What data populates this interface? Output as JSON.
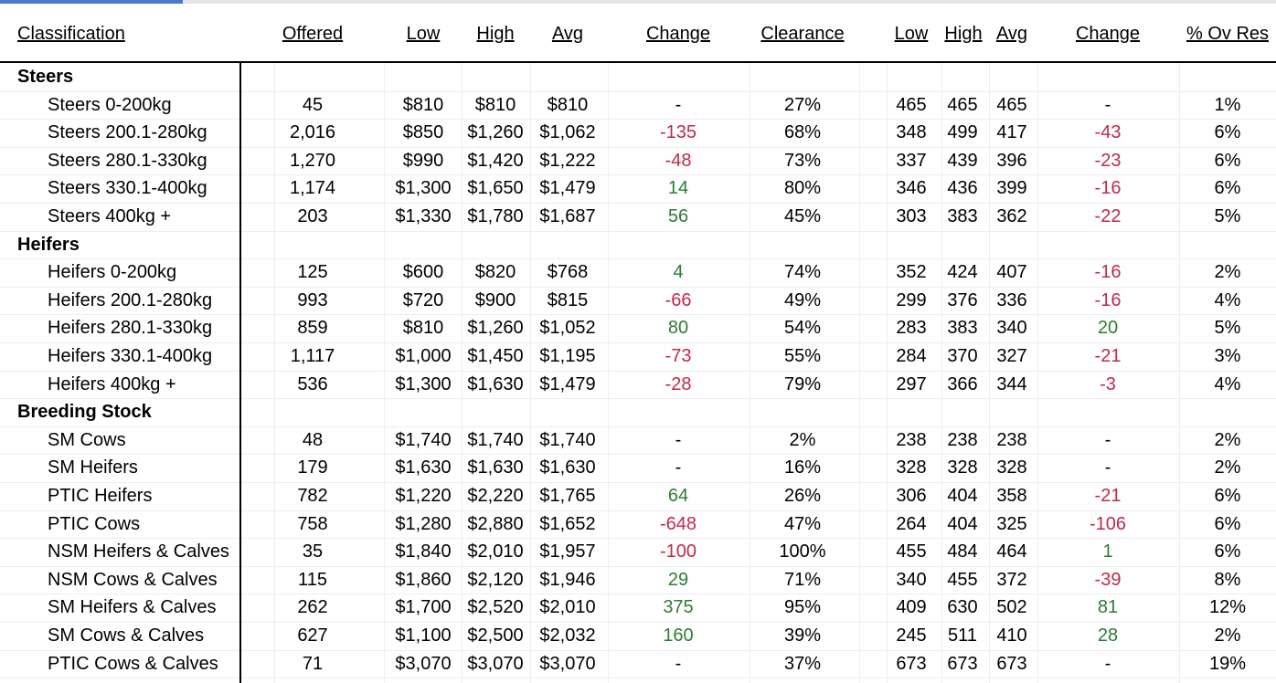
{
  "headers": {
    "classification": "Classification",
    "offered": "Offered",
    "low": "Low",
    "high": "High",
    "avg": "Avg",
    "change": "Change",
    "clearance": "Clearance",
    "low2": "Low",
    "high2": "High",
    "avg2": "Avg",
    "change2": "Change",
    "ovres": "% Ov Res"
  },
  "colors": {
    "negative": "#c0294a",
    "positive": "#2e7d32"
  },
  "rows": [
    {
      "type": "group",
      "label": "Steers"
    },
    {
      "type": "item",
      "label": "Steers 0-200kg",
      "offered": "45",
      "low": "$810",
      "high": "$810",
      "avg": "$810",
      "change": "-",
      "clearance": "27%",
      "low2": "465",
      "high2": "465",
      "avg2": "465",
      "change2": "-",
      "ovres": "1%"
    },
    {
      "type": "item",
      "label": "Steers 200.1-280kg",
      "offered": "2,016",
      "low": "$850",
      "high": "$1,260",
      "avg": "$1,062",
      "change": "-135",
      "clearance": "68%",
      "low2": "348",
      "high2": "499",
      "avg2": "417",
      "change2": "-43",
      "ovres": "6%"
    },
    {
      "type": "item",
      "label": "Steers 280.1-330kg",
      "offered": "1,270",
      "low": "$990",
      "high": "$1,420",
      "avg": "$1,222",
      "change": "-48",
      "clearance": "73%",
      "low2": "337",
      "high2": "439",
      "avg2": "396",
      "change2": "-23",
      "ovres": "6%"
    },
    {
      "type": "item",
      "label": "Steers 330.1-400kg",
      "offered": "1,174",
      "low": "$1,300",
      "high": "$1,650",
      "avg": "$1,479",
      "change": "14",
      "clearance": "80%",
      "low2": "346",
      "high2": "436",
      "avg2": "399",
      "change2": "-16",
      "ovres": "6%"
    },
    {
      "type": "item",
      "label": "Steers 400kg +",
      "offered": "203",
      "low": "$1,330",
      "high": "$1,780",
      "avg": "$1,687",
      "change": "56",
      "clearance": "45%",
      "low2": "303",
      "high2": "383",
      "avg2": "362",
      "change2": "-22",
      "ovres": "5%"
    },
    {
      "type": "group",
      "label": "Heifers"
    },
    {
      "type": "item",
      "label": "Heifers 0-200kg",
      "offered": "125",
      "low": "$600",
      "high": "$820",
      "avg": "$768",
      "change": "4",
      "clearance": "74%",
      "low2": "352",
      "high2": "424",
      "avg2": "407",
      "change2": "-16",
      "ovres": "2%"
    },
    {
      "type": "item",
      "label": "Heifers 200.1-280kg",
      "offered": "993",
      "low": "$720",
      "high": "$900",
      "avg": "$815",
      "change": "-66",
      "clearance": "49%",
      "low2": "299",
      "high2": "376",
      "avg2": "336",
      "change2": "-16",
      "ovres": "4%"
    },
    {
      "type": "item",
      "label": "Heifers 280.1-330kg",
      "offered": "859",
      "low": "$810",
      "high": "$1,260",
      "avg": "$1,052",
      "change": "80",
      "clearance": "54%",
      "low2": "283",
      "high2": "383",
      "avg2": "340",
      "change2": "20",
      "ovres": "5%"
    },
    {
      "type": "item",
      "label": "Heifers 330.1-400kg",
      "offered": "1,117",
      "low": "$1,000",
      "high": "$1,450",
      "avg": "$1,195",
      "change": "-73",
      "clearance": "55%",
      "low2": "284",
      "high2": "370",
      "avg2": "327",
      "change2": "-21",
      "ovres": "3%"
    },
    {
      "type": "item",
      "label": "Heifers 400kg +",
      "offered": "536",
      "low": "$1,300",
      "high": "$1,630",
      "avg": "$1,479",
      "change": "-28",
      "clearance": "79%",
      "low2": "297",
      "high2": "366",
      "avg2": "344",
      "change2": "-3",
      "ovres": "4%"
    },
    {
      "type": "group",
      "label": "Breeding Stock"
    },
    {
      "type": "item",
      "label": "SM Cows",
      "offered": "48",
      "low": "$1,740",
      "high": "$1,740",
      "avg": "$1,740",
      "change": "-",
      "clearance": "2%",
      "low2": "238",
      "high2": "238",
      "avg2": "238",
      "change2": "-",
      "ovres": "2%"
    },
    {
      "type": "item",
      "label": "SM Heifers",
      "offered": "179",
      "low": "$1,630",
      "high": "$1,630",
      "avg": "$1,630",
      "change": "-",
      "clearance": "16%",
      "low2": "328",
      "high2": "328",
      "avg2": "328",
      "change2": "-",
      "ovres": "2%"
    },
    {
      "type": "item",
      "label": "PTIC Heifers",
      "offered": "782",
      "low": "$1,220",
      "high": "$2,220",
      "avg": "$1,765",
      "change": "64",
      "clearance": "26%",
      "low2": "306",
      "high2": "404",
      "avg2": "358",
      "change2": "-21",
      "ovres": "6%"
    },
    {
      "type": "item",
      "label": "PTIC Cows",
      "offered": "758",
      "low": "$1,280",
      "high": "$2,880",
      "avg": "$1,652",
      "change": "-648",
      "clearance": "47%",
      "low2": "264",
      "high2": "404",
      "avg2": "325",
      "change2": "-106",
      "ovres": "6%"
    },
    {
      "type": "item",
      "label": "NSM Heifers & Calves",
      "offered": "35",
      "low": "$1,840",
      "high": "$2,010",
      "avg": "$1,957",
      "change": "-100",
      "clearance": "100%",
      "low2": "455",
      "high2": "484",
      "avg2": "464",
      "change2": "1",
      "ovres": "6%"
    },
    {
      "type": "item",
      "label": "NSM Cows & Calves",
      "offered": "115",
      "low": "$1,860",
      "high": "$2,120",
      "avg": "$1,946",
      "change": "29",
      "clearance": "71%",
      "low2": "340",
      "high2": "455",
      "avg2": "372",
      "change2": "-39",
      "ovres": "8%"
    },
    {
      "type": "item",
      "label": "SM Heifers & Calves",
      "offered": "262",
      "low": "$1,700",
      "high": "$2,520",
      "avg": "$2,010",
      "change": "375",
      "clearance": "95%",
      "low2": "409",
      "high2": "630",
      "avg2": "502",
      "change2": "81",
      "ovres": "12%"
    },
    {
      "type": "item",
      "label": "SM Cows & Calves",
      "offered": "627",
      "low": "$1,100",
      "high": "$2,500",
      "avg": "$2,032",
      "change": "160",
      "clearance": "39%",
      "low2": "245",
      "high2": "511",
      "avg2": "410",
      "change2": "28",
      "ovres": "2%"
    },
    {
      "type": "item",
      "label": "PTIC Cows & Calves",
      "offered": "71",
      "low": "$3,070",
      "high": "$3,070",
      "avg": "$3,070",
      "change": "-",
      "clearance": "37%",
      "low2": "673",
      "high2": "673",
      "avg2": "673",
      "change2": "-",
      "ovres": "19%"
    }
  ]
}
